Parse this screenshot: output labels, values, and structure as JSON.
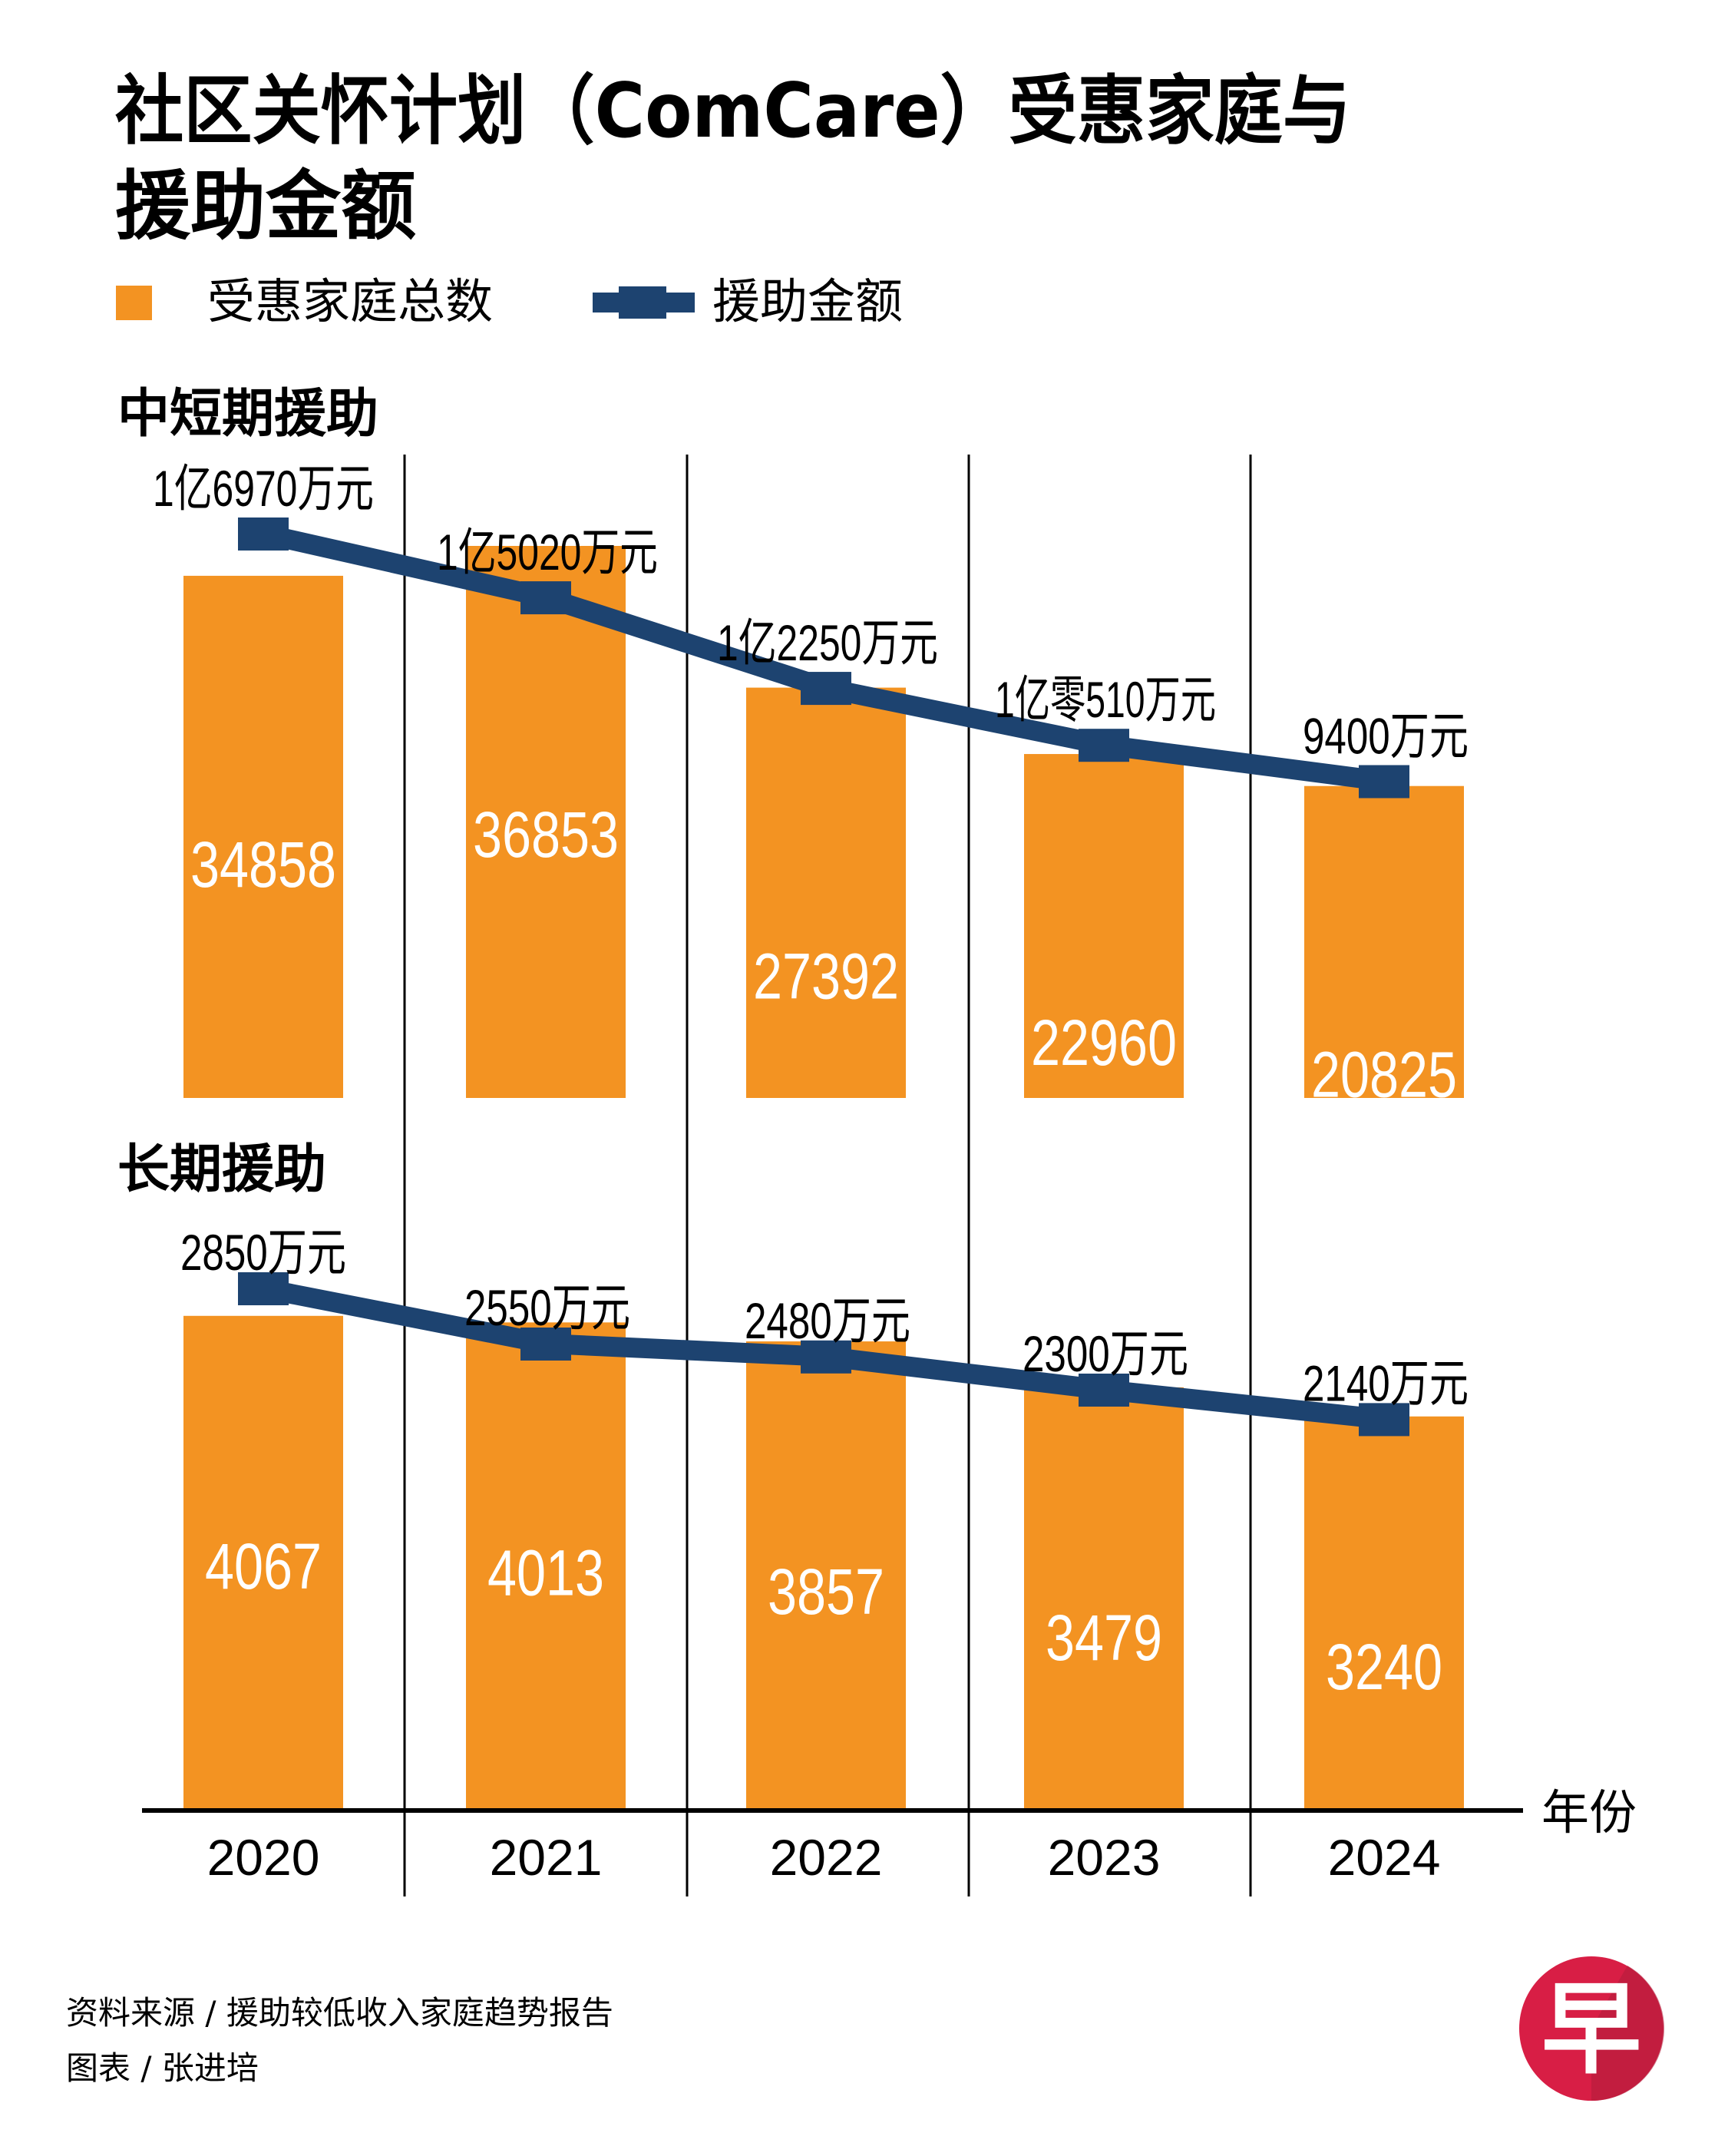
{
  "title": {
    "line1": "社区关怀计划（ComCare）受惠家庭与",
    "line2": "援助金额"
  },
  "legend": {
    "bars_label": "受惠家庭总数",
    "line_label": "援助金额"
  },
  "colors": {
    "bar": "#F39322",
    "line": "#1D4370",
    "divider": "#000000",
    "logo": "#D81E45",
    "logo_shade": "#B01D3B"
  },
  "axis": {
    "unit_label": "年份"
  },
  "footer": {
    "source": "资料来源 / 援助较低收入家庭趋势报告",
    "credit": "图表 / 张进培"
  },
  "logo": {
    "char": "早",
    "icon": "zaobao-logo-icon"
  },
  "chart_data": [
    {
      "type": "bar",
      "title": "中短期援助",
      "categories": [
        "2020",
        "2021",
        "2022",
        "2023",
        "2024"
      ],
      "xlabel": "年份",
      "ylabel": "",
      "grid": false,
      "legend": "top-left",
      "series": [
        {
          "name": "受惠家庭总数",
          "kind": "bar",
          "values": [
            34858,
            36853,
            27392,
            22960,
            20825
          ],
          "labels": [
            "34858",
            "36853",
            "27392",
            "22960",
            "20825"
          ]
        },
        {
          "name": "援助金额",
          "kind": "line",
          "unit": "万元",
          "values": [
            16970,
            15020,
            12250,
            10510,
            9400
          ],
          "labels": [
            "1亿6970万元",
            "1亿5020万元",
            "1亿2250万元",
            "1亿零510万元",
            "9400万元"
          ]
        }
      ]
    },
    {
      "type": "bar",
      "title": "长期援助",
      "categories": [
        "2020",
        "2021",
        "2022",
        "2023",
        "2024"
      ],
      "xlabel": "年份",
      "ylabel": "",
      "grid": false,
      "legend": "top-left",
      "series": [
        {
          "name": "受惠家庭总数",
          "kind": "bar",
          "values": [
            4067,
            4013,
            3857,
            3479,
            3240
          ],
          "labels": [
            "4067",
            "4013",
            "3857",
            "3479",
            "3240"
          ]
        },
        {
          "name": "援助金额",
          "kind": "line",
          "unit": "万元",
          "values": [
            2850,
            2550,
            2480,
            2300,
            2140
          ],
          "labels": [
            "2850万元",
            "2550万元",
            "2480万元",
            "2300万元",
            "2140万元"
          ]
        }
      ]
    }
  ]
}
